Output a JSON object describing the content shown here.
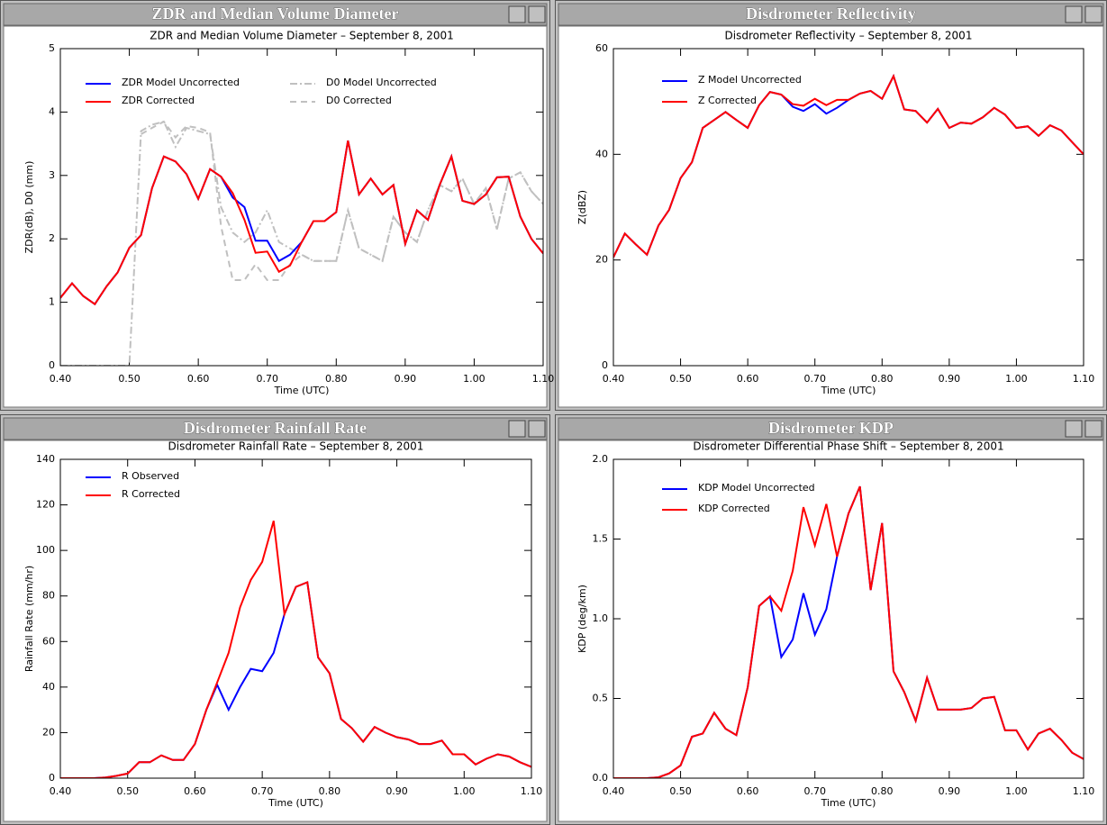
{
  "chart_data": [
    {
      "type": "line",
      "window_title": "ZDR and Median Volume Diameter",
      "title": "ZDR and Median Volume Diameter – September 8, 2001",
      "x_label": "Time (UTC)",
      "y_label": "ZDR(dB), D0 (mm)",
      "x": [
        0.4,
        0.417,
        0.433,
        0.45,
        0.467,
        0.483,
        0.5,
        0.517,
        0.533,
        0.55,
        0.567,
        0.583,
        0.6,
        0.617,
        0.633,
        0.65,
        0.667,
        0.683,
        0.7,
        0.717,
        0.733,
        0.75,
        0.767,
        0.783,
        0.8,
        0.817,
        0.833,
        0.85,
        0.867,
        0.883,
        0.9,
        0.917,
        0.933,
        0.95,
        0.967,
        0.983,
        1.0,
        1.017,
        1.033,
        1.05,
        1.067,
        1.083,
        1.1
      ],
      "xlim": [
        0.4,
        1.1
      ],
      "xticks": [
        {
          "value": 0.4,
          "label": "0.40"
        },
        {
          "value": 0.5,
          "label": "0.50"
        },
        {
          "value": 0.6,
          "label": "0.60"
        },
        {
          "value": 0.7,
          "label": "0.70"
        },
        {
          "value": 0.8,
          "label": "0.80"
        },
        {
          "value": 0.9,
          "label": "0.90"
        },
        {
          "value": 1.0,
          "label": "1.00"
        },
        {
          "value": 1.1,
          "label": "1.10"
        }
      ],
      "ylim": [
        0,
        5
      ],
      "yticks": [
        0,
        1,
        2,
        3,
        4,
        5
      ],
      "legend": "upper left",
      "series": [
        {
          "name": "ZDR Model Uncorrected",
          "color": "#0000ff",
          "dash": "solid",
          "values": [
            1.07,
            1.3,
            1.1,
            0.97,
            1.25,
            1.47,
            1.86,
            2.06,
            2.8,
            3.3,
            3.22,
            3.02,
            2.63,
            3.1,
            2.98,
            2.65,
            2.5,
            1.97,
            1.97,
            1.65,
            1.75,
            1.95,
            2.28,
            2.28,
            2.42,
            3.55,
            2.7,
            2.95,
            2.7,
            2.85,
            1.92,
            2.45,
            2.3,
            2.85,
            3.3,
            2.6,
            2.55,
            2.7,
            2.97,
            2.98,
            2.35,
            2.0,
            1.77
          ]
        },
        {
          "name": "ZDR Corrected",
          "color": "#ff0000",
          "dash": "solid",
          "values": [
            1.07,
            1.3,
            1.1,
            0.97,
            1.25,
            1.47,
            1.86,
            2.06,
            2.8,
            3.3,
            3.22,
            3.02,
            2.63,
            3.1,
            2.98,
            2.72,
            2.3,
            1.78,
            1.8,
            1.48,
            1.58,
            1.95,
            2.28,
            2.28,
            2.42,
            3.55,
            2.7,
            2.95,
            2.7,
            2.85,
            1.92,
            2.45,
            2.3,
            2.85,
            3.3,
            2.6,
            2.55,
            2.7,
            2.97,
            2.98,
            2.35,
            2.0,
            1.77
          ]
        },
        {
          "name": "D0 Model Uncorrected",
          "color": "#c0c0c0",
          "dash": "dashdot",
          "values": [
            0,
            0,
            0,
            0,
            0,
            0,
            0,
            3.7,
            3.8,
            3.85,
            3.45,
            3.75,
            3.7,
            3.65,
            2.5,
            2.1,
            1.95,
            2.1,
            2.45,
            1.95,
            1.85,
            1.75,
            1.65,
            1.65,
            1.65,
            2.45,
            1.85,
            1.75,
            1.65,
            2.35,
            2.1,
            1.95,
            2.45,
            2.85,
            2.75,
            2.95,
            2.55,
            2.8,
            2.15,
            2.95,
            3.05,
            2.75,
            2.55
          ]
        },
        {
          "name": "D0 Corrected",
          "color": "#c0c0c0",
          "dash": "dashed",
          "values": [
            null,
            null,
            null,
            null,
            null,
            null,
            null,
            3.65,
            3.75,
            3.85,
            3.6,
            3.78,
            3.75,
            3.68,
            2.2,
            1.35,
            1.35,
            1.6,
            1.35,
            1.35,
            1.6,
            1.75,
            1.65,
            1.65,
            1.65,
            2.45,
            1.85,
            1.75,
            1.65,
            2.35,
            2.1,
            1.95,
            2.45,
            2.85,
            2.75,
            2.95,
            2.55,
            2.8,
            2.15,
            2.95,
            3.05,
            2.75,
            2.55
          ]
        }
      ]
    },
    {
      "type": "line",
      "window_title": "Disdrometer Reflectivity",
      "title": "Disdrometer Reflectivity – September 8, 2001",
      "x_label": "Time (UTC)",
      "y_label": "Z(dBZ)",
      "x": [
        0.4,
        0.417,
        0.433,
        0.45,
        0.467,
        0.483,
        0.5,
        0.517,
        0.533,
        0.55,
        0.567,
        0.583,
        0.6,
        0.617,
        0.633,
        0.65,
        0.667,
        0.683,
        0.7,
        0.717,
        0.733,
        0.75,
        0.767,
        0.783,
        0.8,
        0.817,
        0.833,
        0.85,
        0.867,
        0.883,
        0.9,
        0.917,
        0.933,
        0.95,
        0.967,
        0.983,
        1.0,
        1.017,
        1.033,
        1.05,
        1.067,
        1.083,
        1.1
      ],
      "xlim": [
        0.4,
        1.1
      ],
      "xticks": [
        {
          "value": 0.4,
          "label": "0.40"
        },
        {
          "value": 0.5,
          "label": "0.50"
        },
        {
          "value": 0.6,
          "label": "0.60"
        },
        {
          "value": 0.7,
          "label": "0.70"
        },
        {
          "value": 0.8,
          "label": "0.80"
        },
        {
          "value": 0.9,
          "label": "0.90"
        },
        {
          "value": 1.0,
          "label": "1.00"
        },
        {
          "value": 1.1,
          "label": "1.10"
        }
      ],
      "ylim": [
        0,
        60
      ],
      "yticks": [
        0,
        20,
        40,
        60
      ],
      "legend": "upper left",
      "series": [
        {
          "name": "Z Model Uncorrected",
          "color": "#0000ff",
          "dash": "solid",
          "values": [
            20.5,
            25,
            23,
            21,
            26.5,
            29.5,
            35.5,
            38.5,
            45,
            46.5,
            48,
            46.5,
            45,
            49.3,
            51.8,
            51.3,
            49,
            48.2,
            49.5,
            47.7,
            48.8,
            50.3,
            51.5,
            52,
            50.5,
            54.8,
            48.5,
            48.2,
            46,
            48.6,
            45,
            46,
            45.8,
            47,
            48.8,
            47.5,
            45,
            45.3,
            43.5,
            45.5,
            44.5,
            42.3,
            40
          ]
        },
        {
          "name": "Z Corrected",
          "color": "#ff0000",
          "dash": "solid",
          "values": [
            20.5,
            25,
            23,
            21,
            26.5,
            29.5,
            35.5,
            38.5,
            45,
            46.5,
            48,
            46.5,
            45,
            49.3,
            51.8,
            51.3,
            49.5,
            49.2,
            50.5,
            49.3,
            50.3,
            50.3,
            51.5,
            52,
            50.5,
            54.8,
            48.5,
            48.2,
            46,
            48.6,
            45,
            46,
            45.8,
            47,
            48.8,
            47.5,
            45,
            45.3,
            43.5,
            45.5,
            44.5,
            42.3,
            40
          ]
        }
      ]
    },
    {
      "type": "line",
      "window_title": "Disdrometer Rainfall Rate",
      "title": "Disdrometer Rainfall Rate – September 8, 2001",
      "x_label": "Time (UTC)",
      "y_label": "Rainfall Rate (mm/hr)",
      "x": [
        0.4,
        0.417,
        0.433,
        0.45,
        0.467,
        0.483,
        0.5,
        0.517,
        0.533,
        0.55,
        0.567,
        0.583,
        0.6,
        0.617,
        0.633,
        0.65,
        0.667,
        0.683,
        0.7,
        0.717,
        0.733,
        0.75,
        0.767,
        0.783,
        0.8,
        0.817,
        0.833,
        0.85,
        0.867,
        0.883,
        0.9,
        0.917,
        0.933,
        0.95,
        0.967,
        0.983,
        1.0,
        1.017,
        1.033,
        1.05,
        1.067,
        1.083,
        1.1
      ],
      "xlim": [
        0.4,
        1.1
      ],
      "xticks": [
        {
          "value": 0.4,
          "label": "0.40"
        },
        {
          "value": 0.5,
          "label": "0.50"
        },
        {
          "value": 0.6,
          "label": "0.60"
        },
        {
          "value": 0.7,
          "label": "0.70"
        },
        {
          "value": 0.8,
          "label": "0.80"
        },
        {
          "value": 0.9,
          "label": "0.90"
        },
        {
          "value": 1.0,
          "label": "1.00"
        },
        {
          "value": 1.1,
          "label": "1.10"
        }
      ],
      "ylim": [
        0,
        140
      ],
      "yticks": [
        0,
        20,
        40,
        60,
        80,
        100,
        120,
        140
      ],
      "legend": "upper left",
      "series": [
        {
          "name": "R Observed",
          "color": "#0000ff",
          "dash": "solid",
          "values": [
            0,
            0,
            0,
            0,
            0.3,
            1,
            2,
            7,
            7,
            10,
            8,
            8,
            15,
            30,
            41,
            30,
            40,
            48,
            47,
            55,
            72,
            84,
            86,
            53,
            46,
            26,
            22,
            16,
            22.5,
            20,
            18,
            17,
            15,
            15,
            16.5,
            10.5,
            10.5,
            6,
            8.5,
            10.5,
            9.5,
            7,
            5
          ]
        },
        {
          "name": "R Corrected",
          "color": "#ff0000",
          "dash": "solid",
          "values": [
            0,
            0,
            0,
            0,
            0.3,
            1,
            2,
            7,
            7,
            10,
            8,
            8,
            15,
            30,
            42,
            55,
            75,
            87,
            95,
            113,
            72,
            84,
            86,
            53,
            46,
            26,
            22,
            16,
            22.5,
            20,
            18,
            17,
            15,
            15,
            16.5,
            10.5,
            10.5,
            6,
            8.5,
            10.5,
            9.5,
            7,
            5
          ]
        }
      ]
    },
    {
      "type": "line",
      "window_title": "Disdrometer KDP",
      "title": "Disdrometer Differential Phase Shift – September 8, 2001",
      "x_label": "Time (UTC)",
      "y_label": "KDP (deg/km)",
      "x": [
        0.4,
        0.417,
        0.433,
        0.45,
        0.467,
        0.483,
        0.5,
        0.517,
        0.533,
        0.55,
        0.567,
        0.583,
        0.6,
        0.617,
        0.633,
        0.65,
        0.667,
        0.683,
        0.7,
        0.717,
        0.733,
        0.75,
        0.767,
        0.783,
        0.8,
        0.817,
        0.833,
        0.85,
        0.867,
        0.883,
        0.9,
        0.917,
        0.933,
        0.95,
        0.967,
        0.983,
        1.0,
        1.017,
        1.033,
        1.05,
        1.067,
        1.083,
        1.1
      ],
      "xlim": [
        0.4,
        1.1
      ],
      "xticks": [
        {
          "value": 0.4,
          "label": "0.40"
        },
        {
          "value": 0.5,
          "label": "0.50"
        },
        {
          "value": 0.6,
          "label": "0.60"
        },
        {
          "value": 0.7,
          "label": "0.70"
        },
        {
          "value": 0.8,
          "label": "0.80"
        },
        {
          "value": 0.9,
          "label": "0.90"
        },
        {
          "value": 1.0,
          "label": "1.00"
        },
        {
          "value": 1.1,
          "label": "1.10"
        }
      ],
      "ylim": [
        0,
        2
      ],
      "yticks": [
        {
          "value": 0,
          "label": "0.0"
        },
        {
          "value": 0.5,
          "label": "0.5"
        },
        {
          "value": 1,
          "label": "1.0"
        },
        {
          "value": 1.5,
          "label": "1.5"
        },
        {
          "value": 2,
          "label": "2.0"
        }
      ],
      "legend": "upper left",
      "series": [
        {
          "name": "KDP Model Uncorrected",
          "color": "#0000ff",
          "dash": "solid",
          "values": [
            0,
            0,
            0,
            0,
            0.005,
            0.03,
            0.08,
            0.26,
            0.28,
            0.41,
            0.31,
            0.27,
            0.57,
            1.08,
            1.14,
            0.76,
            0.87,
            1.16,
            0.9,
            1.06,
            1.39,
            1.66,
            1.83,
            1.18,
            1.6,
            0.67,
            0.54,
            0.36,
            0.63,
            0.43,
            0.43,
            0.43,
            0.44,
            0.5,
            0.51,
            0.3,
            0.3,
            0.18,
            0.28,
            0.31,
            0.24,
            0.16,
            0.12
          ]
        },
        {
          "name": "KDP Corrected",
          "color": "#ff0000",
          "dash": "solid",
          "values": [
            0,
            0,
            0,
            0,
            0.005,
            0.03,
            0.08,
            0.26,
            0.28,
            0.41,
            0.31,
            0.27,
            0.57,
            1.08,
            1.14,
            1.05,
            1.3,
            1.7,
            1.46,
            1.72,
            1.39,
            1.66,
            1.83,
            1.18,
            1.6,
            0.67,
            0.54,
            0.36,
            0.63,
            0.43,
            0.43,
            0.43,
            0.44,
            0.5,
            0.51,
            0.3,
            0.3,
            0.18,
            0.28,
            0.31,
            0.24,
            0.16,
            0.12
          ]
        }
      ]
    }
  ]
}
